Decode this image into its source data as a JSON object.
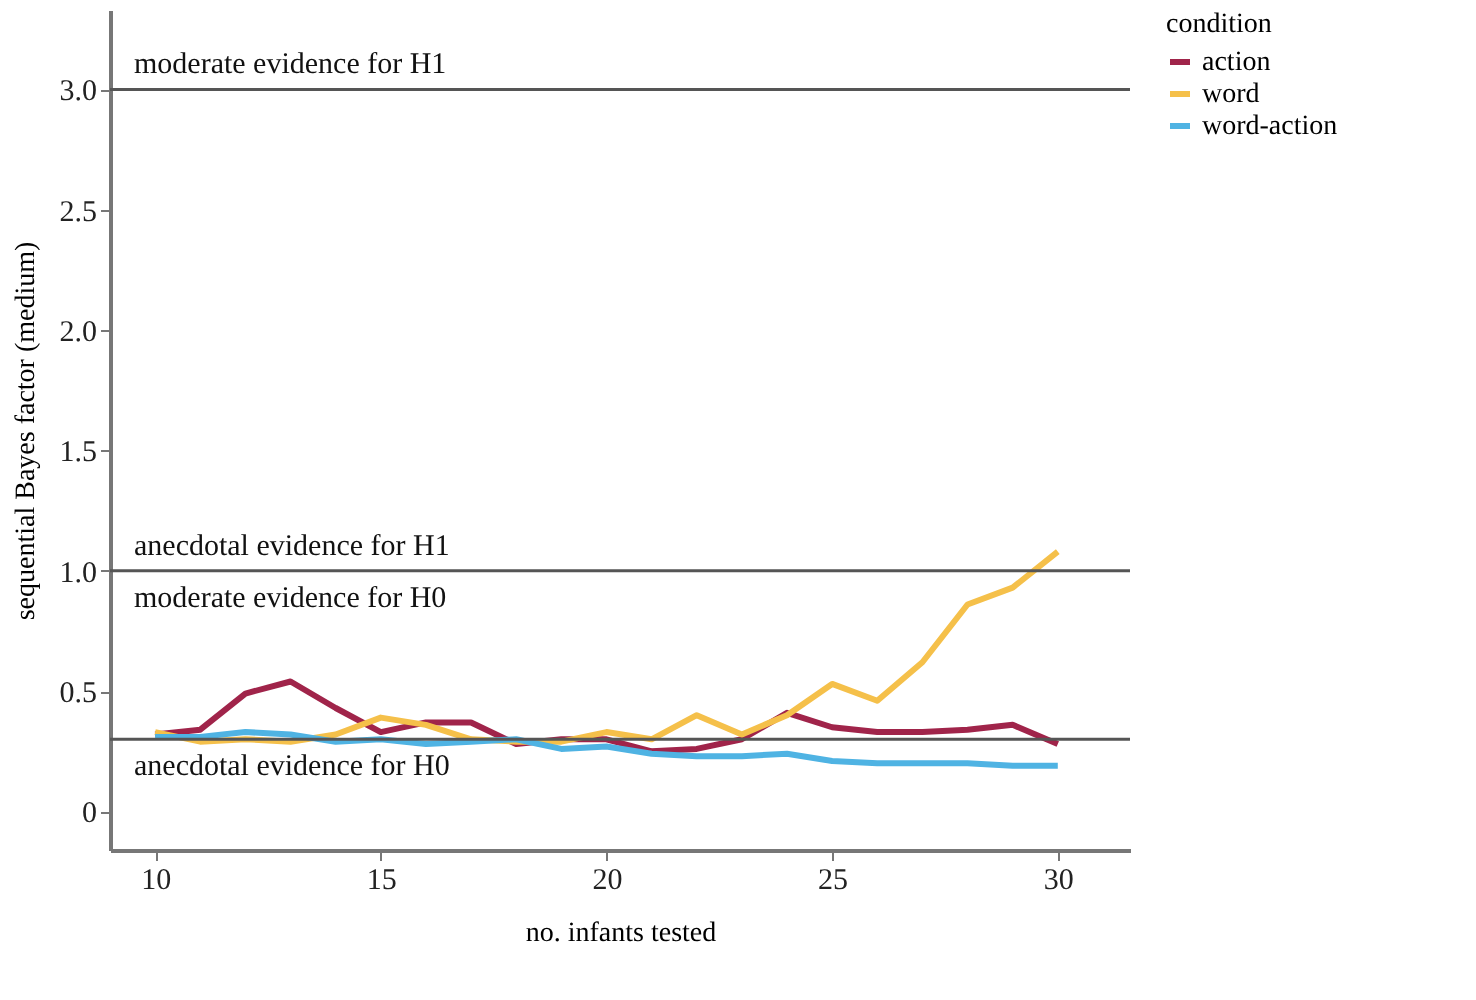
{
  "chart_data": {
    "type": "line",
    "xlabel": "no. infants tested",
    "ylabel": "sequential Bayes factor (medium)",
    "legend_title": "condition",
    "x": [
      10,
      11,
      12,
      13,
      14,
      15,
      16,
      17,
      18,
      19,
      20,
      21,
      22,
      23,
      24,
      25,
      26,
      27,
      28,
      29,
      30
    ],
    "series": [
      {
        "name": "action",
        "color": "#a0244a",
        "values": [
          0.32,
          0.34,
          0.49,
          0.54,
          0.43,
          0.33,
          0.37,
          0.37,
          0.28,
          0.3,
          0.3,
          0.25,
          0.26,
          0.3,
          0.41,
          0.35,
          0.33,
          0.33,
          0.34,
          0.36,
          0.28
        ]
      },
      {
        "name": "word",
        "color": "#f5c04a",
        "values": [
          0.33,
          0.29,
          0.3,
          0.29,
          0.32,
          0.39,
          0.36,
          0.3,
          0.29,
          0.29,
          0.33,
          0.3,
          0.4,
          0.32,
          0.4,
          0.53,
          0.46,
          0.62,
          0.86,
          0.93,
          1.08
        ]
      },
      {
        "name": "word-action",
        "color": "#4fb3e3",
        "values": [
          0.31,
          0.31,
          0.33,
          0.32,
          0.29,
          0.3,
          0.28,
          0.29,
          0.3,
          0.26,
          0.27,
          0.24,
          0.23,
          0.23,
          0.24,
          0.21,
          0.2,
          0.2,
          0.2,
          0.19,
          0.19
        ]
      }
    ],
    "xlim": [
      9,
      31.6
    ],
    "ylim": [
      -0.16,
      3.33
    ],
    "xticks": [
      10,
      15,
      20,
      25,
      30
    ],
    "yticks": [
      {
        "value": 0,
        "label": "0"
      },
      {
        "value": 0.5,
        "label": "0.5"
      },
      {
        "value": 1,
        "label": "1.0"
      },
      {
        "value": 1.5,
        "label": "1.5"
      },
      {
        "value": 2,
        "label": "2.0"
      },
      {
        "value": 2.5,
        "label": "2.5"
      },
      {
        "value": 3,
        "label": "3.0"
      }
    ],
    "ref_lines": [
      {
        "axis": "y",
        "value": 3.0,
        "color": "#555555"
      },
      {
        "axis": "y",
        "value": 1.0,
        "color": "#555555"
      },
      {
        "axis": "y",
        "value": 0.3,
        "color": "#555555"
      }
    ],
    "annotations": [
      "moderate evidence for H1",
      "anecdotal evidence for H1",
      "moderate evidence for H0",
      "anecdotal evidence for H0"
    ],
    "grid": false,
    "legend": "right",
    "marker": "none",
    "line_style": "solid"
  }
}
